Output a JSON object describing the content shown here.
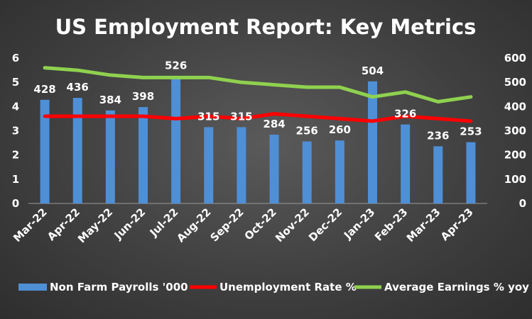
{
  "chart_data": {
    "type": "bar",
    "title": "US Employment Report: Key Metrics",
    "categories": [
      "Mar-22",
      "Apr-22",
      "May-22",
      "Jun-22",
      "Jul-22",
      "Aug-22",
      "Sep-22",
      "Oct-22",
      "Nov-22",
      "Dec-22",
      "Jan-23",
      "Feb-23",
      "Mar-23",
      "Apr-23"
    ],
    "series": [
      {
        "name": "Non Farm Payrolls '000",
        "type": "bar",
        "axis": "left",
        "color": "#4f8fd6",
        "values": [
          428,
          436,
          384,
          398,
          526,
          315,
          315,
          284,
          256,
          260,
          504,
          326,
          236,
          253
        ]
      },
      {
        "name": "Unemployment Rate %",
        "type": "line",
        "axis": "left",
        "color": "#ff0000",
        "values": [
          3.6,
          3.6,
          3.6,
          3.6,
          3.5,
          3.6,
          3.5,
          3.7,
          3.6,
          3.5,
          3.4,
          3.6,
          3.5,
          3.4
        ]
      },
      {
        "name": "Average Earnings % yoy",
        "type": "line",
        "axis": "left",
        "color": "#8fd14f",
        "values": [
          5.6,
          5.5,
          5.3,
          5.2,
          5.2,
          5.2,
          5.0,
          4.9,
          4.8,
          4.8,
          4.4,
          4.6,
          4.2,
          4.4
        ]
      }
    ],
    "y_left": {
      "ticks": [
        0,
        1,
        2,
        3,
        4,
        5,
        6
      ],
      "ylim": [
        0,
        6
      ]
    },
    "y_right": {
      "ticks": [
        0,
        100,
        200,
        300,
        400,
        500,
        600
      ],
      "ylim": [
        0,
        600
      ]
    },
    "grid": false,
    "legend_position": "bottom",
    "data_labels": [
      "428",
      "436",
      "384",
      "398",
      "526",
      "315",
      "315",
      "284",
      "256",
      "260",
      "504",
      "326",
      "236",
      "253"
    ]
  }
}
